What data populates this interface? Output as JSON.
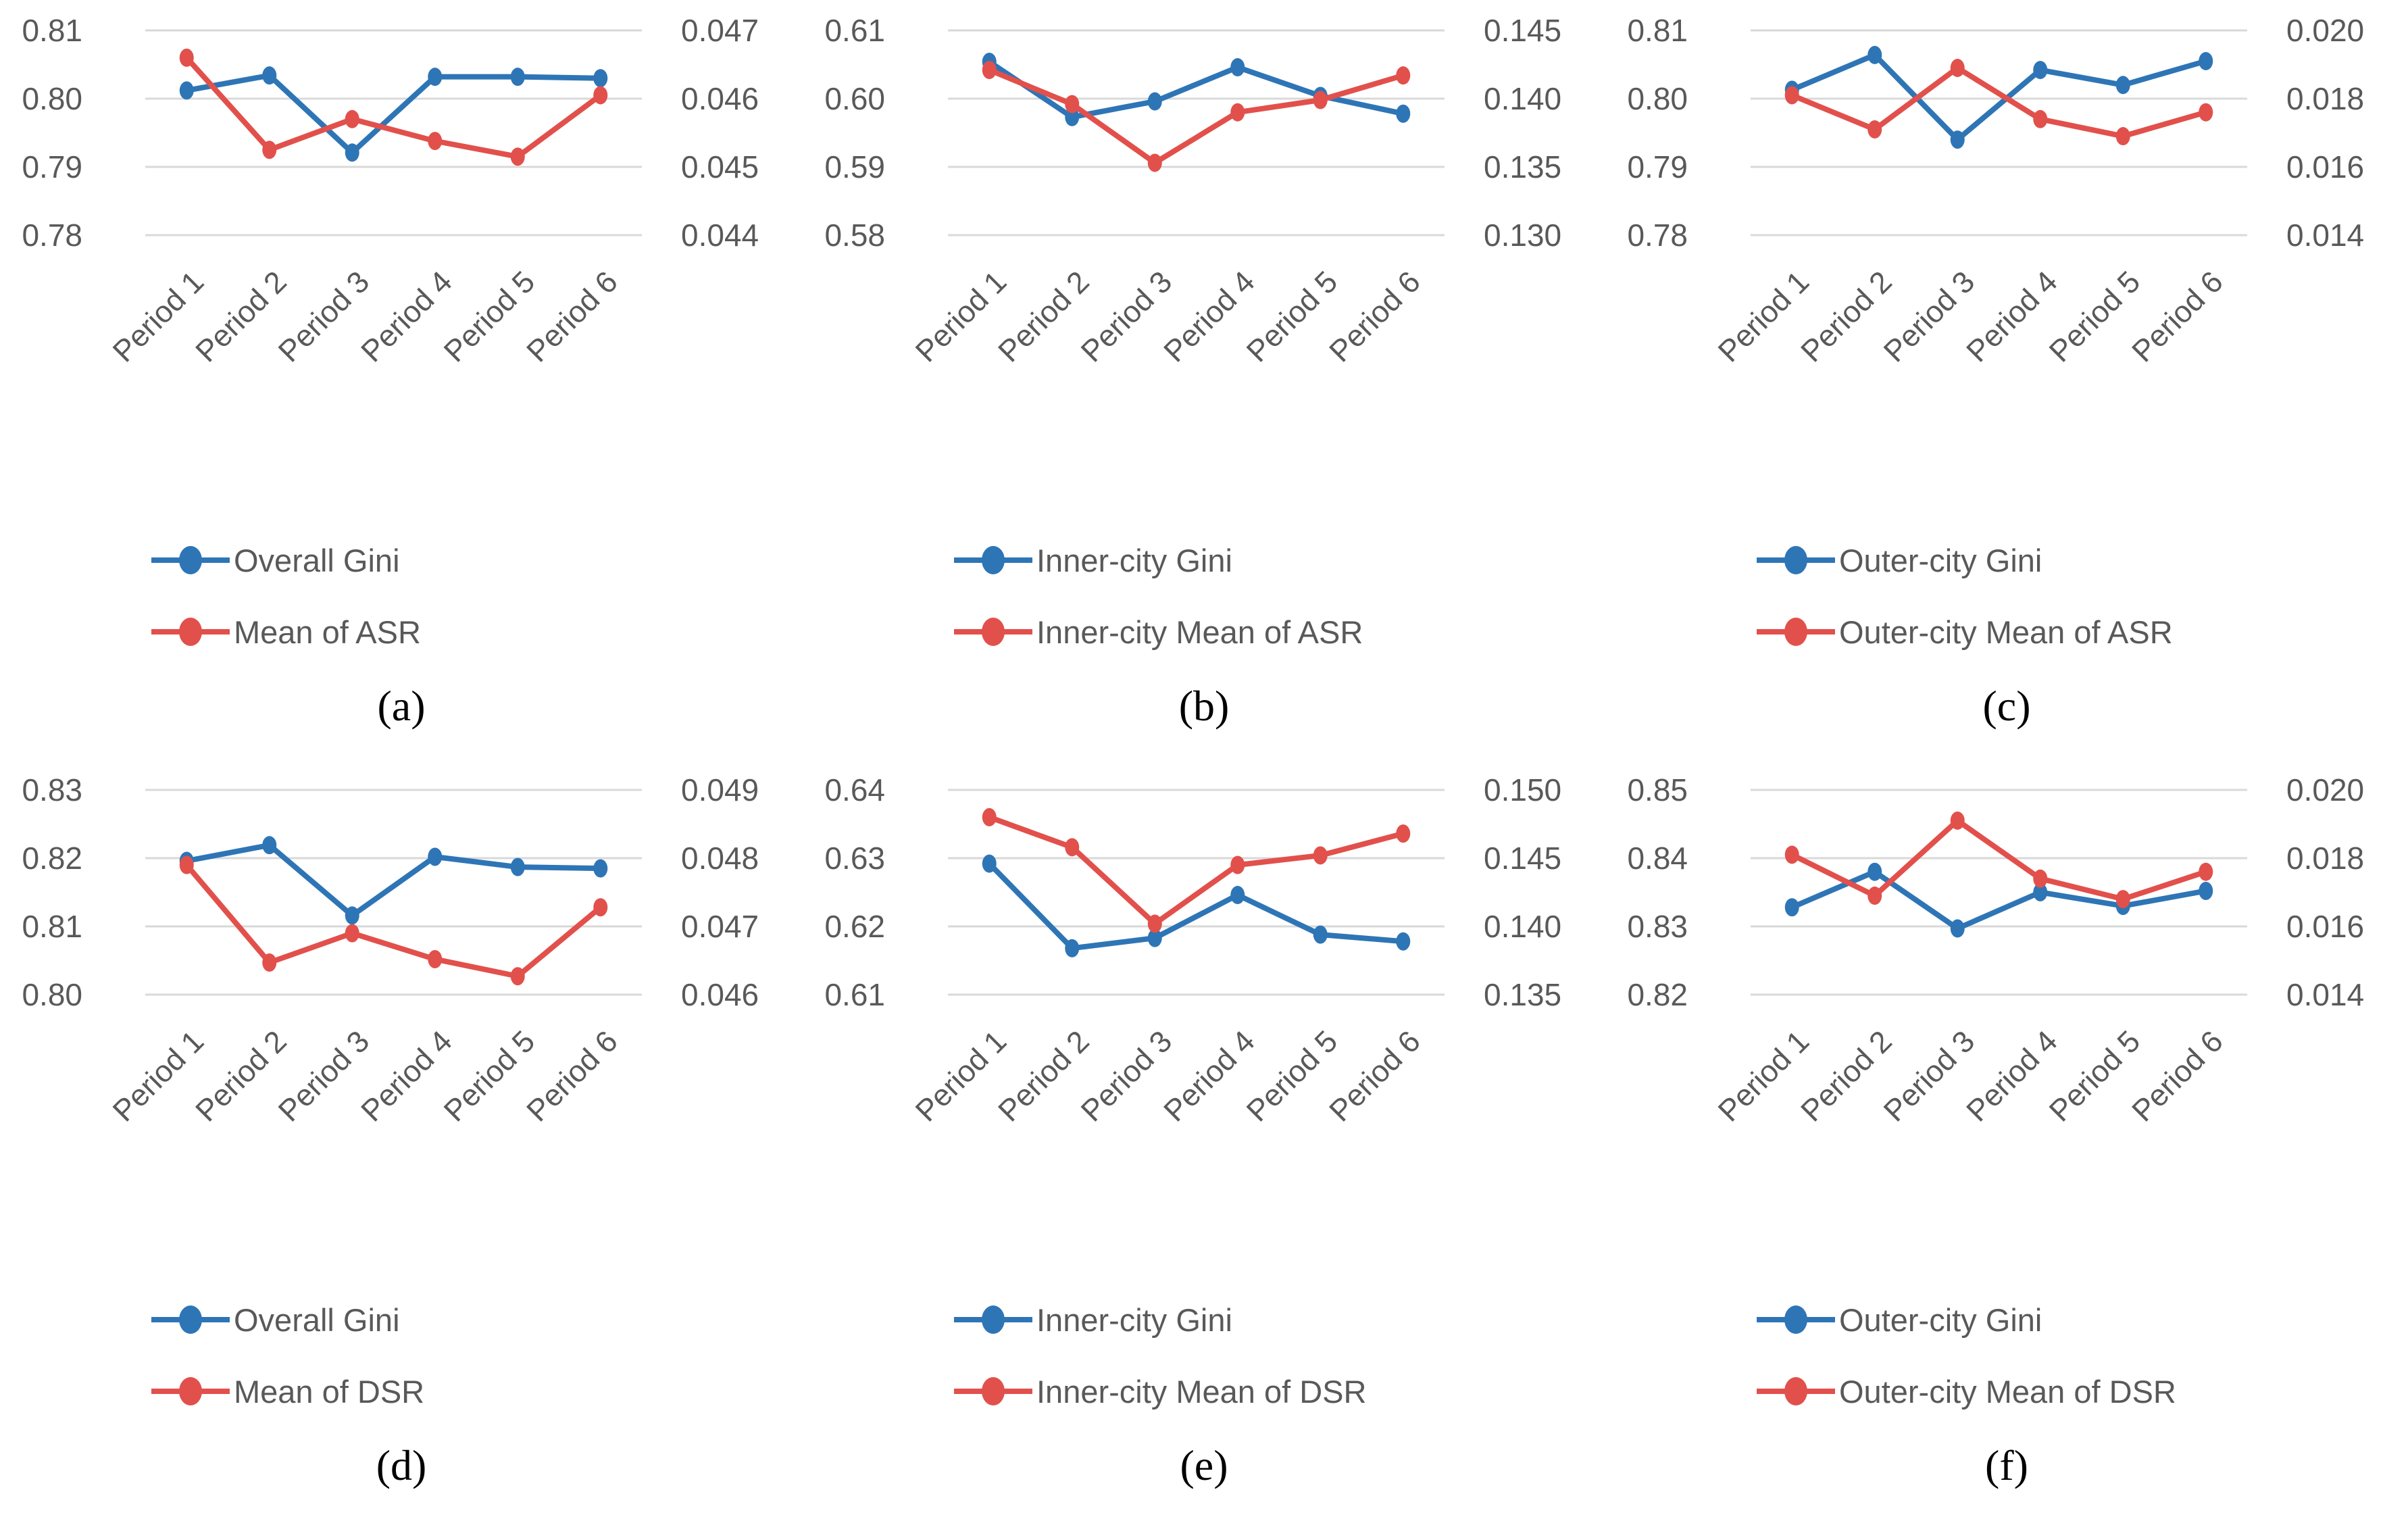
{
  "figure": {
    "x_categories": [
      "Period 1",
      "Period 2",
      "Period 3",
      "Period 4",
      "Period 5",
      "Period 6"
    ]
  },
  "colors": {
    "blue": "#2E75B6",
    "red": "#E2504C",
    "grid": "#D9D9D9",
    "axis_text": "#595959"
  },
  "chart_data": [
    {
      "id": "a",
      "type": "line",
      "caption": "(a)",
      "categories": [
        "Period 1",
        "Period 2",
        "Period 3",
        "Period 4",
        "Period 5",
        "Period 6"
      ],
      "left_axis": {
        "ticks": [
          0.81,
          0.8,
          0.79,
          0.78
        ],
        "tick_labels": [
          "0.81",
          "0.80",
          "0.79",
          "0.78"
        ]
      },
      "right_axis": {
        "ticks": [
          0.047,
          0.046,
          0.045,
          0.044
        ],
        "tick_labels": [
          "0.047",
          "0.046",
          "0.045",
          "0.044"
        ]
      },
      "series": [
        {
          "name": "Overall Gini",
          "axis": "left",
          "color": "blue",
          "values": [
            0.8012,
            0.8034,
            0.7921,
            0.8032,
            0.8032,
            0.803
          ]
        },
        {
          "name": "Mean of ASR",
          "axis": "right",
          "color": "red",
          "values": [
            0.0466,
            0.04525,
            0.0457,
            0.04538,
            0.04515,
            0.04605
          ]
        }
      ]
    },
    {
      "id": "b",
      "type": "line",
      "caption": "(b)",
      "categories": [
        "Period 1",
        "Period 2",
        "Period 3",
        "Period 4",
        "Period 5",
        "Period 6"
      ],
      "left_axis": {
        "ticks": [
          0.61,
          0.6,
          0.59,
          0.58
        ],
        "tick_labels": [
          "0.61",
          "0.60",
          "0.59",
          "0.58"
        ]
      },
      "right_axis": {
        "ticks": [
          0.145,
          0.14,
          0.135,
          0.13
        ],
        "tick_labels": [
          "0.145",
          "0.140",
          "0.135",
          "0.130"
        ]
      },
      "series": [
        {
          "name": "Inner-city Gini",
          "axis": "left",
          "color": "blue",
          "values": [
            0.6054,
            0.5973,
            0.5996,
            0.6046,
            0.6004,
            0.5978
          ]
        },
        {
          "name": "Inner-city Mean of ASR",
          "axis": "right",
          "color": "red",
          "values": [
            0.1421,
            0.1396,
            0.1353,
            0.139,
            0.1399,
            0.1417
          ]
        }
      ]
    },
    {
      "id": "c",
      "type": "line",
      "caption": "(c)",
      "categories": [
        "Period 1",
        "Period 2",
        "Period 3",
        "Period 4",
        "Period 5",
        "Period 6"
      ],
      "left_axis": {
        "ticks": [
          0.81,
          0.8,
          0.79,
          0.78
        ],
        "tick_labels": [
          "0.81",
          "0.80",
          "0.79",
          "0.78"
        ]
      },
      "right_axis": {
        "ticks": [
          0.02,
          0.018,
          0.016,
          0.014
        ],
        "tick_labels": [
          "0.020",
          "0.018",
          "0.016",
          "0.014"
        ]
      },
      "series": [
        {
          "name": "Outer-city Gini",
          "axis": "left",
          "color": "blue",
          "values": [
            0.8013,
            0.8064,
            0.794,
            0.8042,
            0.802,
            0.8055
          ]
        },
        {
          "name": "Outer-city Mean of ASR",
          "axis": "right",
          "color": "red",
          "values": [
            0.0181,
            0.0171,
            0.0189,
            0.0174,
            0.0169,
            0.0176
          ]
        }
      ]
    },
    {
      "id": "d",
      "type": "line",
      "caption": "(d)",
      "categories": [
        "Period 1",
        "Period 2",
        "Period 3",
        "Period 4",
        "Period 5",
        "Period 6"
      ],
      "left_axis": {
        "ticks": [
          0.83,
          0.82,
          0.81,
          0.8
        ],
        "tick_labels": [
          "0.83",
          "0.82",
          "0.81",
          "0.80"
        ]
      },
      "right_axis": {
        "ticks": [
          0.049,
          0.048,
          0.047,
          0.046
        ],
        "tick_labels": [
          "0.049",
          "0.048",
          "0.047",
          "0.046"
        ]
      },
      "series": [
        {
          "name": "Overall Gini",
          "axis": "left",
          "color": "blue",
          "values": [
            0.8196,
            0.8219,
            0.8116,
            0.8202,
            0.8187,
            0.8185
          ]
        },
        {
          "name": "Mean of DSR",
          "axis": "right",
          "color": "red",
          "values": [
            0.0479,
            0.04647,
            0.0469,
            0.04652,
            0.04627,
            0.04728
          ]
        }
      ]
    },
    {
      "id": "e",
      "type": "line",
      "caption": "(e)",
      "categories": [
        "Period 1",
        "Period 2",
        "Period 3",
        "Period 4",
        "Period 5",
        "Period 6"
      ],
      "left_axis": {
        "ticks": [
          0.64,
          0.63,
          0.62,
          0.61
        ],
        "tick_labels": [
          "0.64",
          "0.63",
          "0.62",
          "0.61"
        ]
      },
      "right_axis": {
        "ticks": [
          0.15,
          0.145,
          0.14,
          0.135
        ],
        "tick_labels": [
          "0.150",
          "0.145",
          "0.140",
          "0.135"
        ]
      },
      "series": [
        {
          "name": "Inner-city Gini",
          "axis": "left",
          "color": "blue",
          "values": [
            0.6292,
            0.6168,
            0.6183,
            0.6246,
            0.6188,
            0.6178
          ]
        },
        {
          "name": "Inner-city Mean of DSR",
          "axis": "right",
          "color": "red",
          "values": [
            0.148,
            0.1458,
            0.1402,
            0.1445,
            0.1452,
            0.1468
          ]
        }
      ]
    },
    {
      "id": "f",
      "type": "line",
      "caption": "(f)",
      "categories": [
        "Period 1",
        "Period 2",
        "Period 3",
        "Period 4",
        "Period 5",
        "Period 6"
      ],
      "left_axis": {
        "ticks": [
          0.85,
          0.84,
          0.83,
          0.82
        ],
        "tick_labels": [
          "0.85",
          "0.84",
          "0.83",
          "0.82"
        ]
      },
      "right_axis": {
        "ticks": [
          0.02,
          0.018,
          0.016,
          0.014
        ],
        "tick_labels": [
          "0.020",
          "0.018",
          "0.016",
          "0.014"
        ]
      },
      "series": [
        {
          "name": "Outer-city Gini",
          "axis": "left",
          "color": "blue",
          "values": [
            0.8328,
            0.838,
            0.8297,
            0.835,
            0.833,
            0.8352
          ]
        },
        {
          "name": "Outer-city Mean of DSR",
          "axis": "right",
          "color": "red",
          "values": [
            0.0181,
            0.0169,
            0.0191,
            0.0174,
            0.0168,
            0.0176
          ]
        }
      ]
    }
  ]
}
